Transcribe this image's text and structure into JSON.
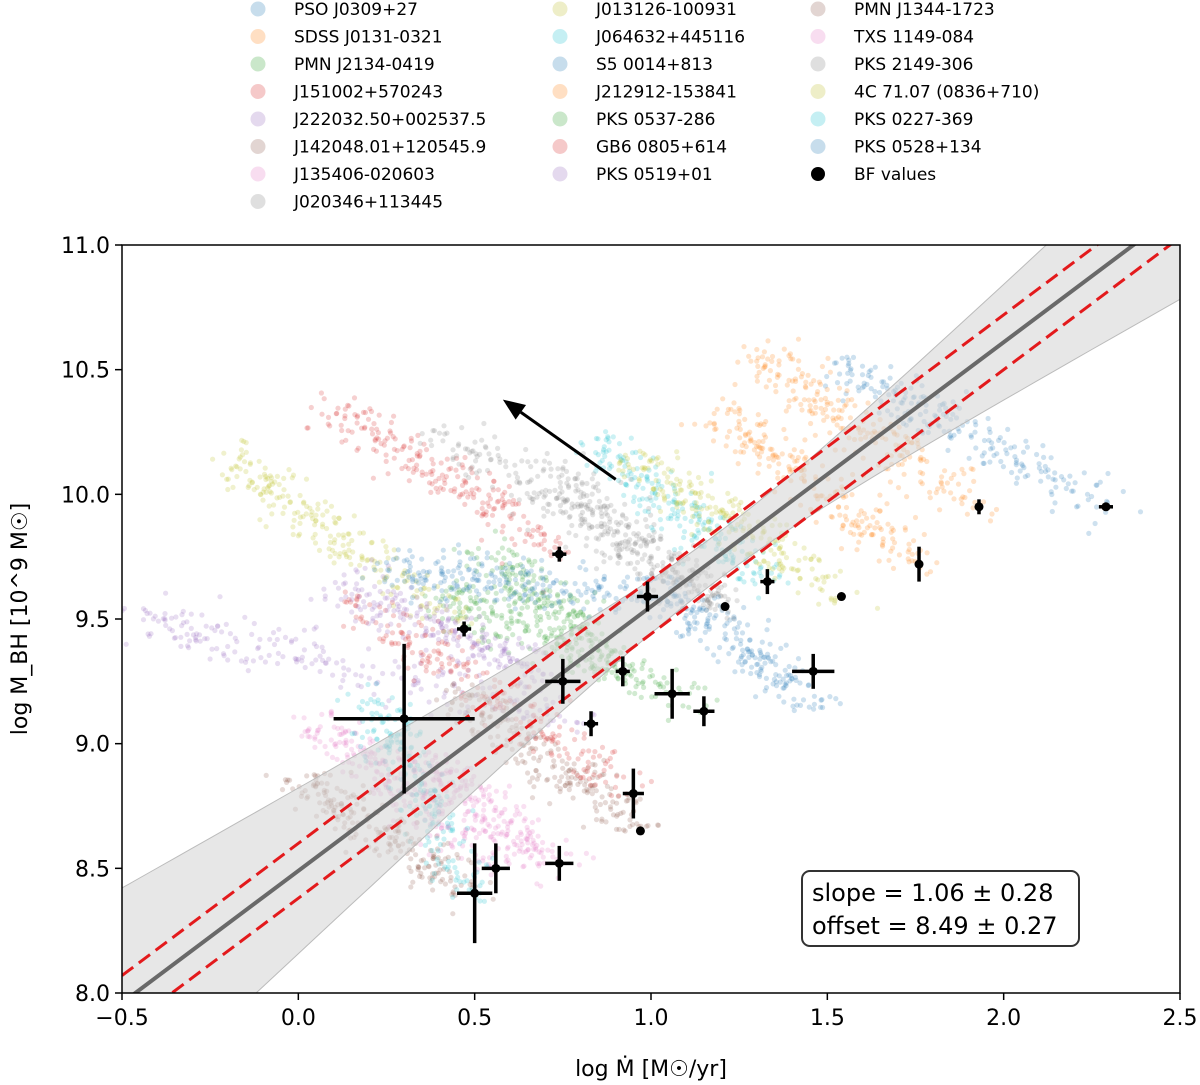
{
  "chart_data": {
    "type": "scatter",
    "xlabel": "log Ṁ [M☉/yr]",
    "ylabel": "log M_BH [10^9 M☉]",
    "xlim": [
      -0.5,
      2.5
    ],
    "ylim": [
      8.0,
      11.0
    ],
    "xticks": [
      "−0.5",
      "0.0",
      "0.5",
      "1.0",
      "1.5",
      "2.0",
      "2.5"
    ],
    "yticks": [
      "8.0",
      "8.5",
      "9.0",
      "9.5",
      "10.0",
      "10.5",
      "11.0"
    ],
    "grid": false,
    "legend_position": "top (above plot, 3 columns)",
    "series": [
      {
        "name": "PSO J0309+27",
        "color": "#1f77b4",
        "cloud": {
          "start": [
            1.5,
            9.34
          ],
          "end": [
            2.3,
            9.95
          ],
          "center_frac": 0.5,
          "anchor": [
            2.3,
            9.95
          ],
          "line": [
            [
              1.55,
              10.5
            ],
            [
              2.3,
              9.95
            ]
          ]
        }
      },
      {
        "name": "SDSS J0131-0321",
        "color": "#ff7f0e",
        "cloud": {
          "line": [
            [
              1.3,
              10.55
            ],
            [
              1.93,
              9.95
            ]
          ]
        }
      },
      {
        "name": "PMN J2134-0419",
        "color": "#2ca02c",
        "cloud": {
          "line": [
            [
              0.4,
              9.6
            ],
            [
              1.15,
              9.15
            ]
          ]
        }
      },
      {
        "name": "J151002+570243",
        "color": "#d62728",
        "cloud": {
          "line": [
            [
              0.1,
              10.35
            ],
            [
              0.75,
              9.76
            ]
          ]
        }
      },
      {
        "name": "J222032.50+002537.5",
        "color": "#9467bd",
        "cloud": {
          "line": [
            [
              -0.45,
              9.5
            ],
            [
              0.83,
              9.08
            ]
          ]
        }
      },
      {
        "name": "J142048.01+120545.9",
        "color": "#8c564b",
        "cloud": {
          "line": [
            [
              0.45,
              9.2
            ],
            [
              0.97,
              8.65
            ]
          ]
        }
      },
      {
        "name": "J135406-020603",
        "color": "#e377c2",
        "cloud": {
          "line": [
            [
              0.35,
              8.95
            ],
            [
              0.75,
              8.5
            ]
          ]
        }
      },
      {
        "name": "J020346+113445",
        "color": "#7f7f7f",
        "cloud": {
          "line": [
            [
              0.4,
              10.25
            ],
            [
              1.21,
              9.55
            ]
          ]
        }
      },
      {
        "name": "J013126-100931",
        "color": "#bcbd22",
        "cloud": {
          "line": [
            [
              -0.2,
              10.15
            ],
            [
              0.47,
              9.46
            ]
          ]
        }
      },
      {
        "name": "J064632+445116",
        "color": "#17becf",
        "cloud": {
          "line": [
            [
              0.85,
              10.2
            ],
            [
              1.33,
              9.65
            ]
          ]
        }
      },
      {
        "name": "S5 0014+813",
        "color": "#1f77b4",
        "cloud": {
          "line": [
            [
              1.0,
              9.65
            ],
            [
              1.5,
              9.15
            ]
          ]
        }
      },
      {
        "name": "J212912-153841",
        "color": "#ff7f0e",
        "cloud": {
          "line": [
            [
              1.2,
              10.3
            ],
            [
              1.76,
              9.72
            ]
          ]
        }
      },
      {
        "name": "PKS 0537-286",
        "color": "#2ca02c",
        "cloud": {
          "line": [
            [
              0.55,
              9.75
            ],
            [
              0.92,
              9.29
            ]
          ]
        }
      },
      {
        "name": "GB6 0805+614",
        "color": "#d62728",
        "cloud": {
          "line": [
            [
              0.15,
              9.6
            ],
            [
              0.95,
              8.8
            ]
          ]
        }
      },
      {
        "name": "PKS 0519+01",
        "color": "#9467bd",
        "cloud": {
          "line": [
            [
              0.1,
              9.65
            ],
            [
              0.74,
              9.25
            ]
          ]
        }
      },
      {
        "name": "PMN J1344-1723",
        "color": "#8c564b",
        "cloud": {
          "line": [
            [
              0.0,
              8.85
            ],
            [
              0.52,
              8.4
            ]
          ]
        }
      },
      {
        "name": "TXS 1149-084",
        "color": "#e377c2",
        "cloud": {
          "line": [
            [
              0.05,
              9.1
            ],
            [
              0.56,
              8.5
            ]
          ]
        }
      },
      {
        "name": "PKS 2149-306",
        "color": "#7f7f7f",
        "cloud": {
          "line": [
            [
              0.7,
              10.1
            ],
            [
              1.21,
              9.55
            ]
          ]
        }
      },
      {
        "name": "4C 71.07 (0836+710)",
        "color": "#bcbd22",
        "cloud": {
          "line": [
            [
              0.95,
              10.15
            ],
            [
              1.54,
              9.59
            ]
          ]
        }
      },
      {
        "name": "PKS 0227-369",
        "color": "#17becf",
        "cloud": {
          "line": [
            [
              0.2,
              9.2
            ],
            [
              0.5,
              8.4
            ]
          ]
        }
      },
      {
        "name": "PKS 0528+134",
        "color": "#1f77b4",
        "cloud": {
          "line": [
            [
              0.25,
              9.7
            ],
            [
              0.99,
              9.59
            ]
          ]
        }
      }
    ],
    "bf_label": "BF values",
    "bf_points": [
      {
        "x": 2.29,
        "y": 9.95,
        "xerr": 0.02,
        "yerr": 0.0
      },
      {
        "x": 1.93,
        "y": 9.95,
        "xerr": 0.01,
        "yerr": 0.03
      },
      {
        "x": 1.76,
        "y": 9.72,
        "xerr": 0.01,
        "yerr": 0.07
      },
      {
        "x": 1.54,
        "y": 9.59,
        "xerr": 0.0,
        "yerr": 0.0
      },
      {
        "x": 1.33,
        "y": 9.65,
        "xerr": 0.02,
        "yerr": 0.05
      },
      {
        "x": 1.21,
        "y": 9.55,
        "xerr": 0.0,
        "yerr": 0.0
      },
      {
        "x": 0.99,
        "y": 9.59,
        "xerr": 0.03,
        "yerr": 0.06
      },
      {
        "x": 0.74,
        "y": 9.76,
        "xerr": 0.02,
        "yerr": 0.03
      },
      {
        "x": 0.47,
        "y": 9.46,
        "xerr": 0.02,
        "yerr": 0.03
      },
      {
        "x": 0.75,
        "y": 9.25,
        "xerr": 0.05,
        "yerr": 0.09
      },
      {
        "x": 0.92,
        "y": 9.29,
        "xerr": 0.02,
        "yerr": 0.06
      },
      {
        "x": 1.06,
        "y": 9.2,
        "xerr": 0.05,
        "yerr": 0.1
      },
      {
        "x": 1.15,
        "y": 9.13,
        "xerr": 0.03,
        "yerr": 0.06
      },
      {
        "x": 1.46,
        "y": 9.29,
        "xerr": 0.06,
        "yerr": 0.07
      },
      {
        "x": 0.83,
        "y": 9.08,
        "xerr": 0.02,
        "yerr": 0.05
      },
      {
        "x": 0.3,
        "y": 9.1,
        "xerr": 0.2,
        "yerr": 0.3
      },
      {
        "x": 0.95,
        "y": 8.8,
        "xerr": 0.03,
        "yerr": 0.1
      },
      {
        "x": 0.97,
        "y": 8.65,
        "xerr": 0.0,
        "yerr": 0.0
      },
      {
        "x": 0.74,
        "y": 8.52,
        "xerr": 0.04,
        "yerr": 0.07
      },
      {
        "x": 0.56,
        "y": 8.5,
        "xerr": 0.04,
        "yerr": 0.1
      },
      {
        "x": 0.5,
        "y": 8.4,
        "xerr": 0.05,
        "yerr": 0.2
      }
    ],
    "fit": {
      "slope": 1.06,
      "offset": 8.49,
      "pivot_x": 0.0,
      "band_color": "#d3d3d3",
      "line_color": "#696969",
      "scatter_offsets": [
        0.11,
        -0.11
      ],
      "scatter_color": "#e31a1c"
    },
    "arrow": {
      "from": [
        0.9,
        10.06
      ],
      "to": [
        0.58,
        10.38
      ]
    },
    "annotation": {
      "line1": "slope = 1.06 ± 0.28",
      "line2": "offset = 8.49 ± 0.27"
    }
  }
}
